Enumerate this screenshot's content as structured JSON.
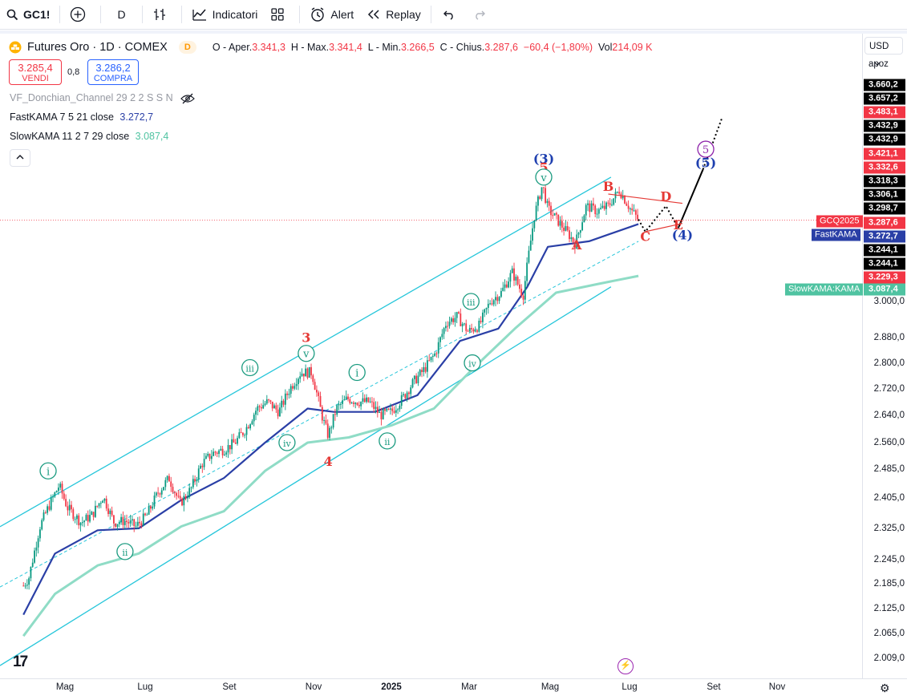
{
  "toolbar": {
    "symbol": "GC1!",
    "interval": "D",
    "indicators_label": "Indicatori",
    "alert_label": "Alert",
    "replay_label": "Replay"
  },
  "legend": {
    "title": "Futures Oro · 1D · COMEX",
    "interval_badge": "D",
    "open_label": "O - Aper.",
    "open": "3.341,3",
    "high_label": "H - Max.",
    "high": "3.341,4",
    "low_label": "L - Min.",
    "low": "3.266,5",
    "close_label": "C - Chius.",
    "close": "3.287,6",
    "change": "−60,4 (−1,80%)",
    "vol_label": "Vol",
    "vol": "214,09 K"
  },
  "trade": {
    "sell_price": "3.285,4",
    "sell_label": "VENDI",
    "spread": "0,8",
    "buy_price": "3.286,2",
    "buy_label": "COMPRA"
  },
  "indicators": {
    "donchian": "VF_Donchian_Channel 29 2 2 S S N",
    "fast_label": "FastKAMA 7 5 21 close",
    "fast_value": "3.272,7",
    "slow_label": "SlowKAMA 11 2 7 29 close",
    "slow_value": "3.087,4"
  },
  "currency": {
    "selected": "USD",
    "mode": "apoz"
  },
  "colors": {
    "candle_up": "#089981",
    "candle_down": "#f23645",
    "channel": "#26c6da",
    "fast_kama": "#2a3fa6",
    "slow_kama": "#8fdcc6",
    "wave_red": "#e53935",
    "wave_blue": "#1e3faf",
    "wave_purple": "#8e24aa",
    "wave_green": "#1b9b80"
  },
  "price_labels": [
    {
      "text": "3.660,2",
      "bg": "#000000"
    },
    {
      "text": "3.657,2",
      "bg": "#000000"
    },
    {
      "text": "3.483,1",
      "bg": "#f23645"
    },
    {
      "text": "3.432,9",
      "bg": "#000000"
    },
    {
      "text": "3.432,9",
      "bg": "#000000"
    },
    {
      "text": "3.421,1",
      "bg": "#f23645"
    },
    {
      "text": "3.332,6",
      "bg": "#f23645"
    },
    {
      "text": "3.318,3",
      "bg": "#000000"
    },
    {
      "text": "3.306,1",
      "bg": "#000000"
    },
    {
      "text": "3.298,7",
      "bg": "#000000"
    },
    {
      "text": "3.287,6",
      "bg": "#f23645"
    },
    {
      "text": "3.272,7",
      "bg": "#2a3fa6"
    },
    {
      "text": "3.244,1",
      "bg": "#000000"
    },
    {
      "text": "3.244,1",
      "bg": "#000000"
    },
    {
      "text": "3.229,3",
      "bg": "#f23645"
    },
    {
      "text": "3.087,4",
      "bg": "#4fc3a1"
    }
  ],
  "line_tags": {
    "symbol": "GCQ2025",
    "fast": "FastKAMA",
    "slow": "SlowKAMA:KAMA"
  },
  "chart_data": {
    "type": "candlestick",
    "title": "Futures Oro · 1D · COMEX",
    "y_ticks": [
      "3.000,0",
      "2.880,0",
      "2.800,0",
      "2.720,0",
      "2.640,0",
      "2.560,0",
      "2.485,0",
      "2.405,0",
      "2.325,0",
      "2.245,0",
      "2.185,0",
      "2.125,0",
      "2.065,0",
      "2.009,0"
    ],
    "y_tick_values": [
      3000,
      2880,
      2800,
      2720,
      2640,
      2560,
      2485,
      2405,
      2325,
      2245,
      2185,
      2125,
      2065,
      2009
    ],
    "x_ticks": [
      "Mag",
      "Lug",
      "Set",
      "Nov",
      "2025",
      "Mar",
      "Mag",
      "Lug",
      "Set",
      "Nov"
    ],
    "price_path": [
      [
        "2024-04-08",
        2180
      ],
      [
        "2024-04-12",
        2200
      ],
      [
        "2024-04-20",
        2330
      ],
      [
        "2024-04-26",
        2380
      ],
      [
        "2024-05-04",
        2440
      ],
      [
        "2024-05-10",
        2380
      ],
      [
        "2024-05-20",
        2340
      ],
      [
        "2024-05-28",
        2360
      ],
      [
        "2024-06-05",
        2410
      ],
      [
        "2024-06-13",
        2340
      ],
      [
        "2024-06-21",
        2345
      ],
      [
        "2024-06-29",
        2330
      ],
      [
        "2024-07-07",
        2360
      ],
      [
        "2024-07-15",
        2420
      ],
      [
        "2024-07-23",
        2460
      ],
      [
        "2024-07-31",
        2390
      ],
      [
        "2024-08-08",
        2430
      ],
      [
        "2024-08-16",
        2500
      ],
      [
        "2024-08-24",
        2530
      ],
      [
        "2024-09-01",
        2540
      ],
      [
        "2024-09-09",
        2560
      ],
      [
        "2024-09-17",
        2600
      ],
      [
        "2024-09-25",
        2660
      ],
      [
        "2024-10-03",
        2680
      ],
      [
        "2024-10-11",
        2650
      ],
      [
        "2024-10-19",
        2720
      ],
      [
        "2024-10-27",
        2770
      ],
      [
        "2024-11-04",
        2770
      ],
      [
        "2024-11-12",
        2630
      ],
      [
        "2024-11-16",
        2580
      ],
      [
        "2024-11-22",
        2660
      ],
      [
        "2024-11-30",
        2690
      ],
      [
        "2024-12-08",
        2680
      ],
      [
        "2024-12-16",
        2680
      ],
      [
        "2024-12-24",
        2640
      ],
      [
        "2025-01-01",
        2650
      ],
      [
        "2025-01-09",
        2690
      ],
      [
        "2025-01-17",
        2740
      ],
      [
        "2025-01-25",
        2780
      ],
      [
        "2025-02-02",
        2830
      ],
      [
        "2025-02-10",
        2930
      ],
      [
        "2025-02-18",
        2950
      ],
      [
        "2025-02-26",
        2900
      ],
      [
        "2025-03-06",
        2920
      ],
      [
        "2025-03-14",
        3000
      ],
      [
        "2025-03-22",
        3030
      ],
      [
        "2025-03-30",
        3100
      ],
      [
        "2025-04-07",
        3020
      ],
      [
        "2025-04-15",
        3300
      ],
      [
        "2025-04-21",
        3420
      ],
      [
        "2025-04-25",
        3330
      ],
      [
        "2025-05-03",
        3280
      ],
      [
        "2025-05-11",
        3230
      ],
      [
        "2025-05-15",
        3200
      ],
      [
        "2025-05-23",
        3340
      ],
      [
        "2025-05-31",
        3320
      ],
      [
        "2025-06-08",
        3340
      ],
      [
        "2025-06-16",
        3400
      ],
      [
        "2025-06-24",
        3330
      ],
      [
        "2025-06-30",
        3287.6
      ]
    ],
    "fast_kama": [
      [
        "2024-04-08",
        2110
      ],
      [
        "2024-05-01",
        2260
      ],
      [
        "2024-06-01",
        2320
      ],
      [
        "2024-07-01",
        2325
      ],
      [
        "2024-08-01",
        2400
      ],
      [
        "2024-09-01",
        2460
      ],
      [
        "2024-10-01",
        2560
      ],
      [
        "2024-11-01",
        2660
      ],
      [
        "2024-11-20",
        2650
      ],
      [
        "2024-12-20",
        2650
      ],
      [
        "2025-01-20",
        2700
      ],
      [
        "2025-02-20",
        2870
      ],
      [
        "2025-03-20",
        2910
      ],
      [
        "2025-04-10",
        3050
      ],
      [
        "2025-04-25",
        3190
      ],
      [
        "2025-05-25",
        3210
      ],
      [
        "2025-06-30",
        3272.7
      ]
    ],
    "slow_kama": [
      [
        "2024-04-08",
        2060
      ],
      [
        "2024-05-01",
        2160
      ],
      [
        "2024-06-01",
        2230
      ],
      [
        "2024-07-01",
        2260
      ],
      [
        "2024-08-01",
        2330
      ],
      [
        "2024-09-01",
        2370
      ],
      [
        "2024-10-01",
        2480
      ],
      [
        "2024-11-01",
        2560
      ],
      [
        "2024-12-01",
        2575
      ],
      [
        "2025-01-01",
        2610
      ],
      [
        "2025-02-01",
        2660
      ],
      [
        "2025-03-01",
        2780
      ],
      [
        "2025-04-01",
        2910
      ],
      [
        "2025-05-01",
        3030
      ],
      [
        "2025-06-01",
        3060
      ],
      [
        "2025-06-30",
        3087.4
      ]
    ],
    "channel": {
      "upper": [
        [
          "2024-04-01",
          2350
        ],
        [
          "2025-06-10",
          3450
        ]
      ],
      "middle": [
        [
          "2024-04-01",
          2195
        ],
        [
          "2025-06-30",
          3210
        ]
      ],
      "lower": [
        [
          "2024-04-01",
          2012
        ],
        [
          "2025-06-10",
          3050
        ]
      ]
    },
    "projection": {
      "dotted_1": [
        [
          "2025-06-30",
          3290
        ],
        [
          "2025-07-05",
          3245
        ],
        [
          "2025-07-20",
          3340
        ],
        [
          "2025-07-29",
          3258
        ]
      ],
      "solid": [
        [
          "2025-07-29",
          3258
        ],
        [
          "2025-08-16",
          3480
        ]
      ],
      "dotted_2": [
        [
          "2025-08-16",
          3480
        ],
        [
          "2025-08-30",
          3690
        ]
      ]
    },
    "triangle": [
      {
        "from": [
          "2025-06-08",
          3385
        ],
        "to": [
          "2025-08-01",
          3350
        ]
      },
      {
        "from": [
          "2025-07-05",
          3245
        ],
        "to": [
          "2025-08-01",
          3275
        ]
      }
    ],
    "wave_labels": [
      {
        "text": "3",
        "color": "red",
        "circled": false,
        "date": "2024-10-31",
        "price": 2880
      },
      {
        "text": "v",
        "color": "green",
        "circled": true,
        "date": "2024-10-31",
        "price": 2830
      },
      {
        "text": "iii",
        "color": "green",
        "circled": true,
        "date": "2024-09-20",
        "price": 2785
      },
      {
        "text": "i",
        "color": "green",
        "circled": true,
        "date": "2024-12-07",
        "price": 2770
      },
      {
        "text": "iv",
        "color": "green",
        "circled": true,
        "date": "2024-10-17",
        "price": 2560
      },
      {
        "text": "4",
        "color": "red",
        "circled": false,
        "date": "2024-11-16",
        "price": 2505
      },
      {
        "text": "ii",
        "color": "green",
        "circled": true,
        "date": "2024-12-29",
        "price": 2565
      },
      {
        "text": "i",
        "color": "green",
        "circled": true,
        "date": "2024-04-26",
        "price": 2480
      },
      {
        "text": "ii",
        "color": "green",
        "circled": true,
        "date": "2024-06-21",
        "price": 2265
      },
      {
        "text": "iii",
        "color": "green",
        "circled": true,
        "date": "2025-02-28",
        "price": 3000
      },
      {
        "text": "iv",
        "color": "green",
        "circled": true,
        "date": "2025-03-01",
        "price": 2800
      },
      {
        "text": "(3)",
        "color": "blue",
        "circled": false,
        "date": "2025-04-22",
        "price": 3520
      },
      {
        "text": "5",
        "color": "red",
        "circled": false,
        "date": "2025-04-22",
        "price": 3485
      },
      {
        "text": "v",
        "color": "green",
        "circled": true,
        "date": "2025-04-22",
        "price": 3450
      },
      {
        "text": "B",
        "color": "red",
        "circled": false,
        "date": "2025-06-08",
        "price": 3412
      },
      {
        "text": "D",
        "color": "red",
        "circled": false,
        "date": "2025-07-20",
        "price": 3375
      },
      {
        "text": "A",
        "color": "red",
        "circled": false,
        "date": "2025-05-16",
        "price": 3195
      },
      {
        "text": "C",
        "color": "red",
        "circled": false,
        "date": "2025-07-05",
        "price": 3225
      },
      {
        "text": "E",
        "color": "red",
        "circled": false,
        "date": "2025-07-29",
        "price": 3268
      },
      {
        "text": "(4)",
        "color": "blue",
        "circled": false,
        "date": "2025-08-01",
        "price": 3232
      },
      {
        "text": "5",
        "color": "purple",
        "circled": true,
        "date": "2025-08-18",
        "price": 3560
      },
      {
        "text": "(5)",
        "color": "blue",
        "circled": false,
        "date": "2025-08-18",
        "price": 3505
      }
    ]
  }
}
